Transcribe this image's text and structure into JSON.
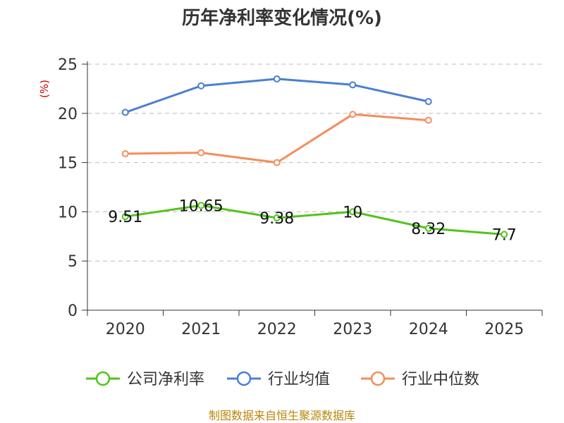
{
  "chart_data": {
    "type": "line",
    "title": "历年净利率变化情况(%)",
    "ylabel": "(%)",
    "xlabel": "",
    "categories": [
      "2020",
      "2021",
      "2022",
      "2023",
      "2024",
      "2025"
    ],
    "ylim": [
      0,
      25
    ],
    "yticks": [
      "0",
      "5",
      "10",
      "15",
      "20",
      "25"
    ],
    "grid": true,
    "legend_position": "bottom",
    "series": [
      {
        "name": "公司净利率",
        "color": "#52c41a",
        "values": [
          9.51,
          10.65,
          9.38,
          10,
          8.32,
          7.7
        ],
        "labels": [
          "9.51",
          "10.65",
          "9.38",
          "10",
          "8.32",
          "7.7"
        ]
      },
      {
        "name": "行业均值",
        "color": "#4a7fd6",
        "values": [
          20.1,
          22.8,
          23.5,
          22.9,
          21.2,
          null
        ]
      },
      {
        "name": "行业中位数",
        "color": "#f48d5c",
        "values": [
          15.9,
          16.0,
          15.0,
          19.9,
          19.3,
          null
        ]
      }
    ]
  },
  "source": "制图数据来自恒生聚源数据库"
}
